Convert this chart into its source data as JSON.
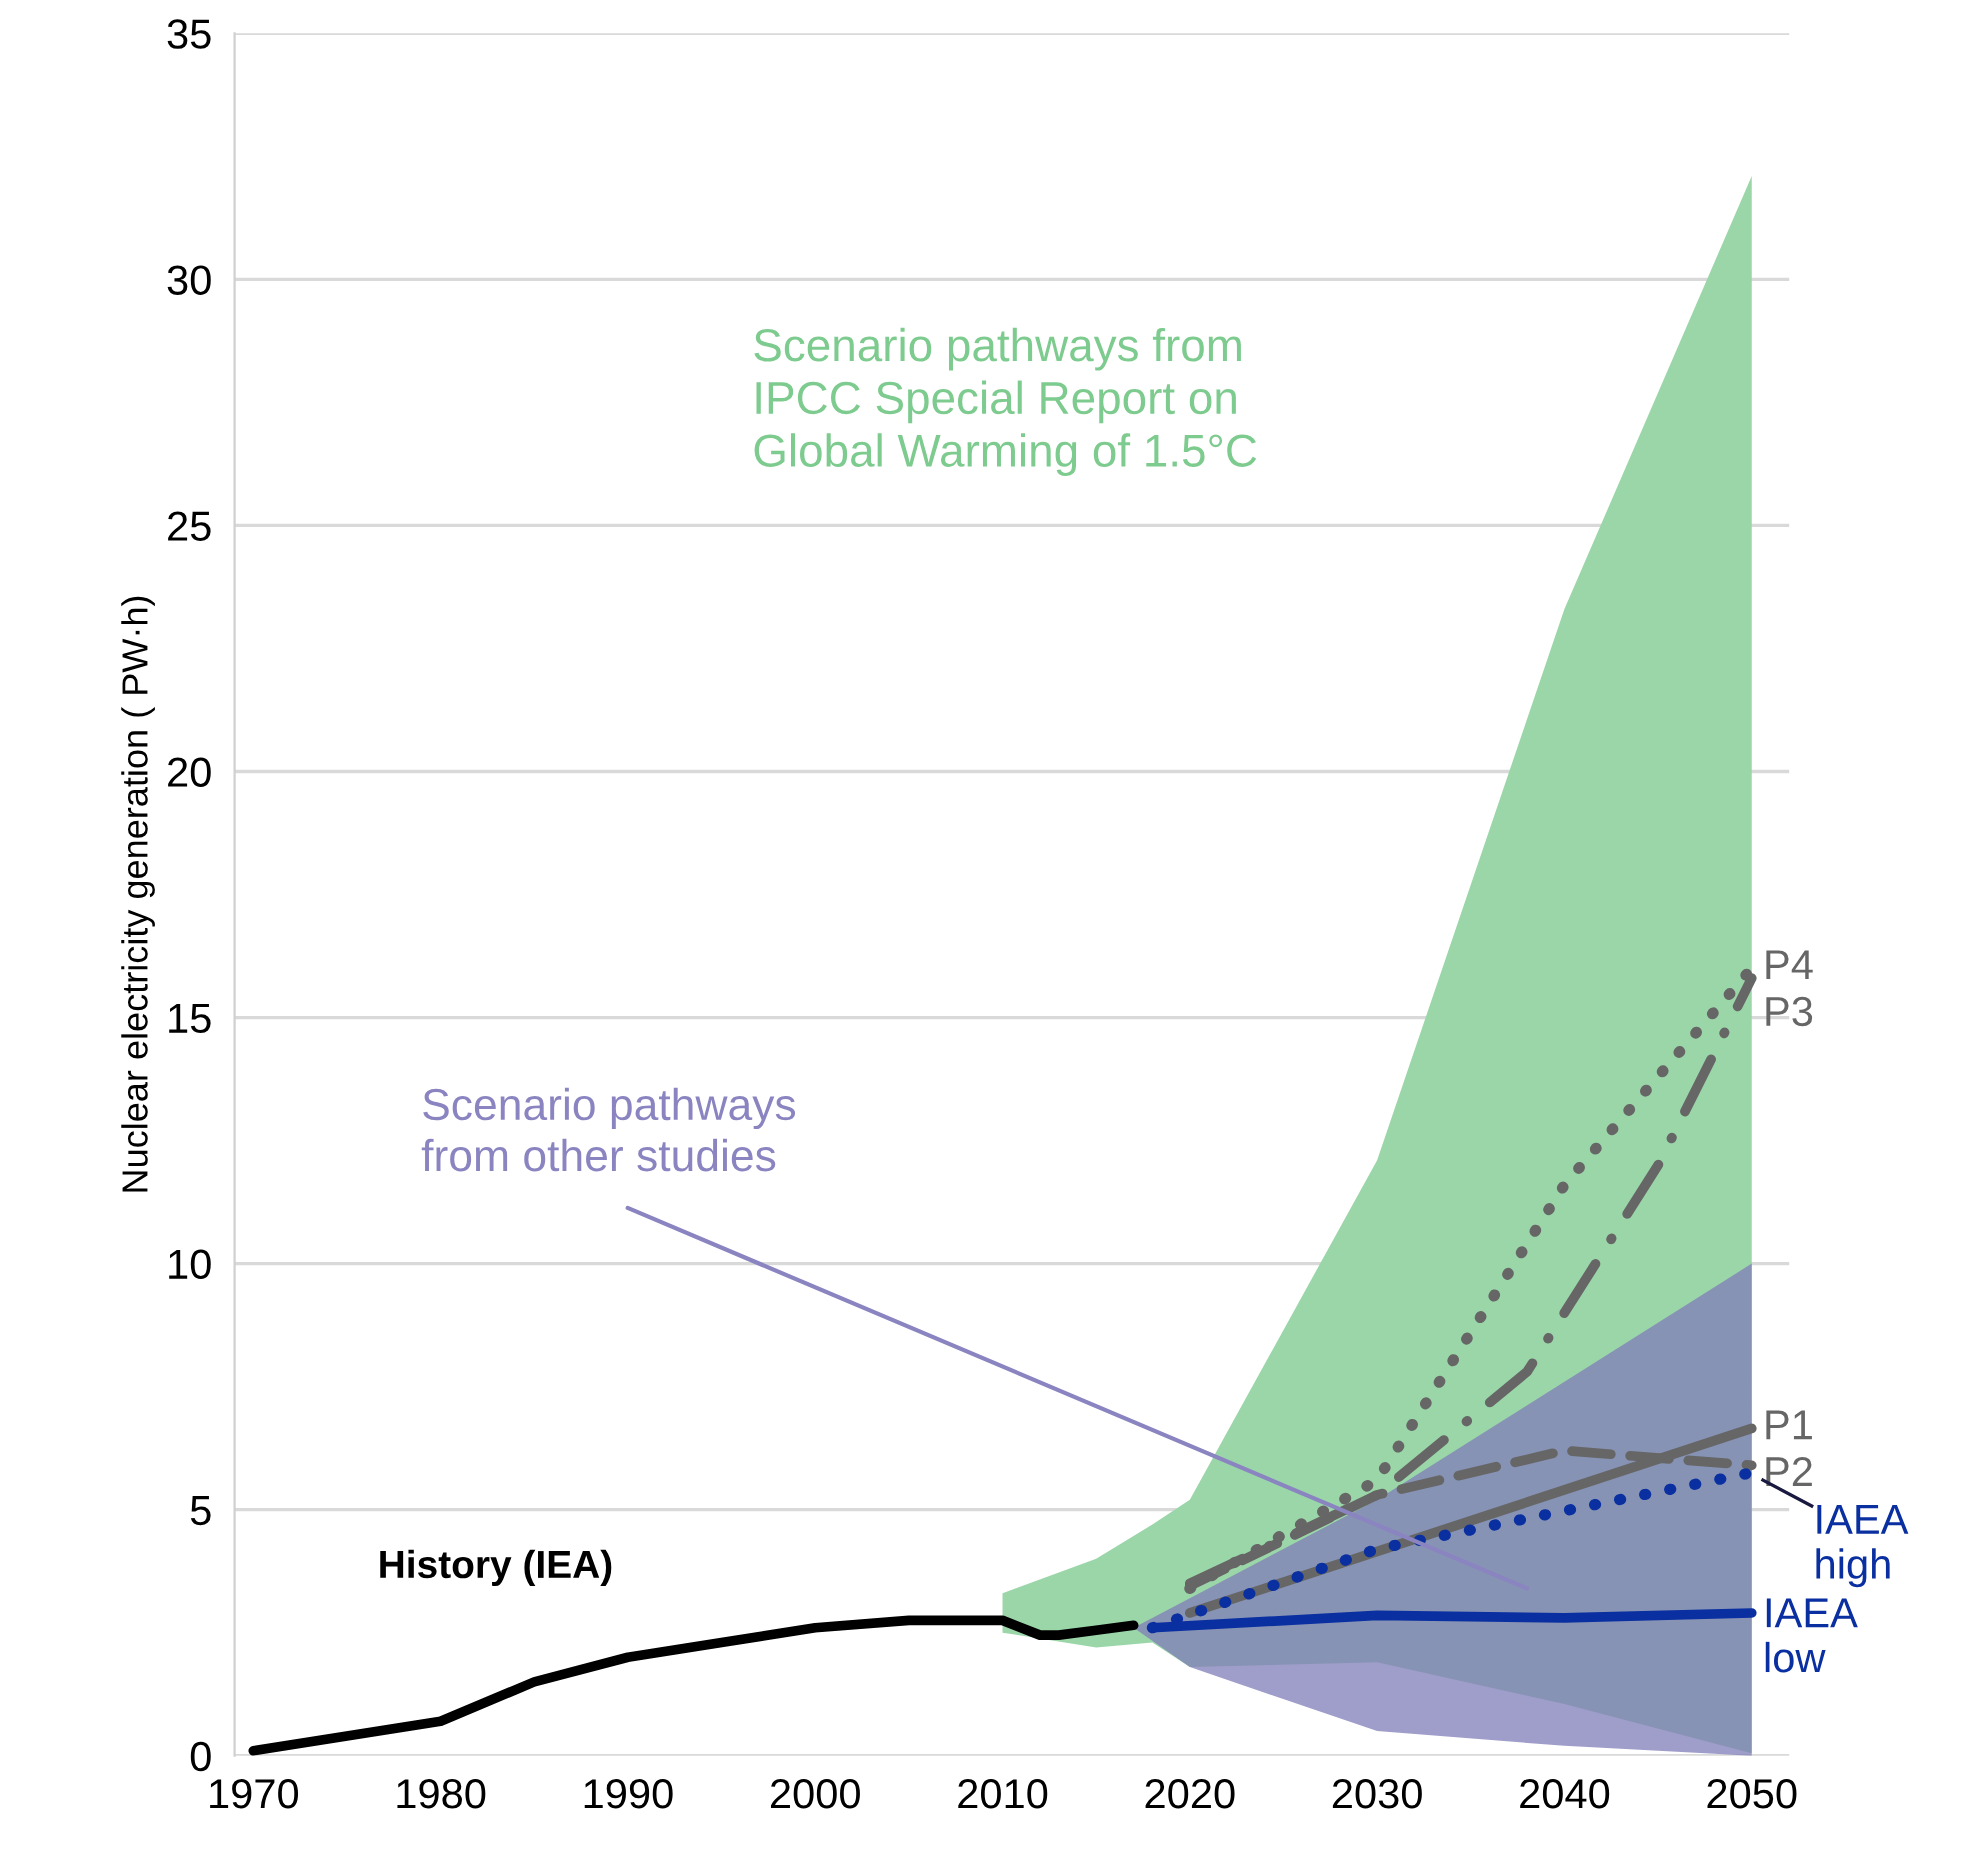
{
  "chart_data": {
    "type": "line",
    "ylabel": "Nuclear electricity generation ( PW·h)",
    "xlim": [
      1969,
      2052
    ],
    "xticks": [
      1970,
      1980,
      1990,
      2000,
      2010,
      2020,
      2030,
      2040,
      2050
    ],
    "ylim": [
      0,
      35
    ],
    "yticks": [
      0,
      5,
      10,
      15,
      20,
      25,
      30,
      35
    ],
    "grid": "y",
    "series": [
      {
        "color": "#9bd6a9",
        "x": [
          2010,
          2015,
          2018,
          2020,
          2030,
          2040,
          2050
        ],
        "values": [
          null,
          null,
          null,
          null,
          null,
          null,
          null
        ],
        "lower": [
          2.5,
          2.2,
          2.3,
          1.8,
          1.9,
          1.05,
          0.05
        ],
        "upper": [
          3.3,
          4.0,
          4.7,
          5.2,
          12.1,
          23.3,
          32.1
        ]
      },
      {
        "color": "#7f7cb8",
        "x": [
          2017,
          2020,
          2030,
          2040,
          2050
        ],
        "values": [
          null,
          null,
          null,
          null,
          null
        ],
        "lower": [
          2.6,
          1.8,
          0.5,
          0.2,
          0
        ],
        "upper": [
          2.6,
          3.2,
          5.2,
          7.6,
          10
        ]
      },
      {
        "name": "History (IEA)",
        "color": "#000000",
        "line_style": "solid",
        "x": [
          1970,
          1980,
          1985,
          1990,
          1995,
          2000,
          2005,
          2010,
          2012,
          2013,
          2015,
          2017
        ],
        "values": [
          0.1,
          0.7,
          1.5,
          2.0,
          2.3,
          2.6,
          2.75,
          2.75,
          2.45,
          2.45,
          2.55,
          2.65
        ]
      },
      {
        "name": "P1",
        "color": "#666666",
        "line_style": "solid",
        "x": [
          2020,
          2050
        ],
        "values": [
          2.9,
          6.65
        ]
      },
      {
        "name": "P2",
        "color": "#666666",
        "line_style": "dashed",
        "x": [
          2020,
          2030,
          2040,
          2050
        ],
        "values": [
          3.45,
          5.3,
          6.2,
          5.9
        ]
      },
      {
        "name": "P3",
        "color": "#666666",
        "line_style": "dashdot",
        "x": [
          2020,
          2030,
          2038,
          2045,
          2050
        ],
        "values": [
          3.5,
          5.3,
          7.8,
          12.0,
          15.8
        ]
      },
      {
        "name": "P4",
        "color": "#666666",
        "line_style": "dotted",
        "x": [
          2020,
          2030,
          2040,
          2050
        ],
        "values": [
          3.4,
          5.6,
          11.6,
          16.0
        ]
      },
      {
        "name": "IAEA high",
        "color": "#0a2fa0",
        "line_style": "dotted",
        "x": [
          2018,
          2030,
          2050
        ],
        "values": [
          2.6,
          4.2,
          5.75
        ]
      },
      {
        "name": "IAEA low",
        "color": "#0a2fa0",
        "line_style": "solid",
        "x": [
          2018,
          2030,
          2040,
          2050
        ],
        "values": [
          2.6,
          2.85,
          2.8,
          2.9
        ]
      }
    ],
    "annotations": [
      "Scenario pathways from\nIPCC Special Report on\nGlobal Warming of 1.5°C",
      "Scenario pathways\nfrom other studies"
    ]
  }
}
